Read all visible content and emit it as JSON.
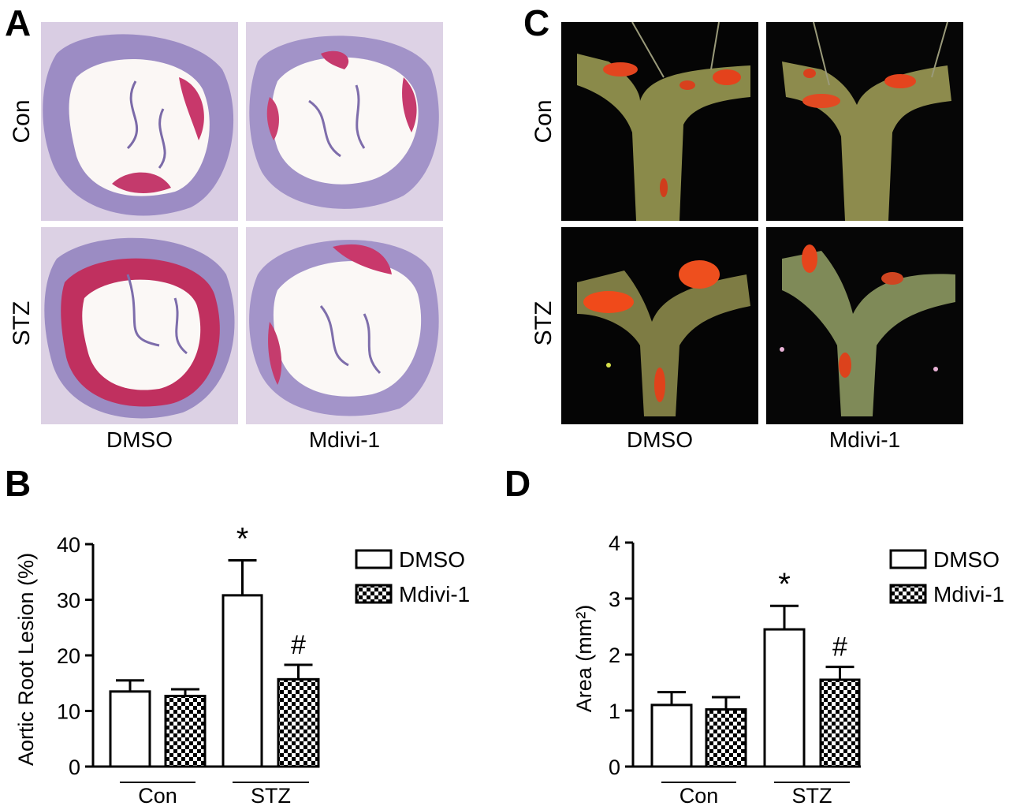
{
  "panels": {
    "A": {
      "letter": "A",
      "rows": [
        "Con",
        "STZ"
      ],
      "columns": [
        "DMSO",
        "Mdivi-1"
      ]
    },
    "C": {
      "letter": "C",
      "rows": [
        "Con",
        "STZ"
      ],
      "columns": [
        "DMSO",
        "Mdivi-1"
      ]
    },
    "B": {
      "letter": "B"
    },
    "D": {
      "letter": "D"
    }
  },
  "chart_data": [
    {
      "type": "bar",
      "panel": "B",
      "ylabel": "Aortic Root Lesion (%)",
      "ylim": [
        0,
        40
      ],
      "yticks": [
        0,
        10,
        20,
        30,
        40
      ],
      "groups": [
        "Con",
        "STZ"
      ],
      "series": [
        {
          "name": "DMSO",
          "values": [
            13.5,
            30.8
          ],
          "errors": [
            2.0,
            6.3
          ],
          "pattern": "open"
        },
        {
          "name": "Mdivi-1",
          "values": [
            12.7,
            15.7
          ],
          "errors": [
            1.2,
            2.6
          ],
          "pattern": "checker"
        }
      ],
      "annotations": [
        {
          "text": "*",
          "group": "STZ",
          "series": "DMSO"
        },
        {
          "text": "#",
          "group": "STZ",
          "series": "Mdivi-1"
        }
      ],
      "legend": "right"
    },
    {
      "type": "bar",
      "panel": "D",
      "ylabel": "Area (mm²)",
      "ylim": [
        0,
        4
      ],
      "yticks": [
        0,
        1,
        2,
        3,
        4
      ],
      "groups": [
        "Con",
        "STZ"
      ],
      "series": [
        {
          "name": "DMSO",
          "values": [
            1.1,
            2.45
          ],
          "errors": [
            0.23,
            0.42
          ],
          "pattern": "open"
        },
        {
          "name": "Mdivi-1",
          "values": [
            1.02,
            1.55
          ],
          "errors": [
            0.22,
            0.23
          ],
          "pattern": "checker"
        }
      ],
      "annotations": [
        {
          "text": "*",
          "group": "STZ",
          "series": "DMSO"
        },
        {
          "text": "#",
          "group": "STZ",
          "series": "Mdivi-1"
        }
      ],
      "legend": "right"
    }
  ]
}
